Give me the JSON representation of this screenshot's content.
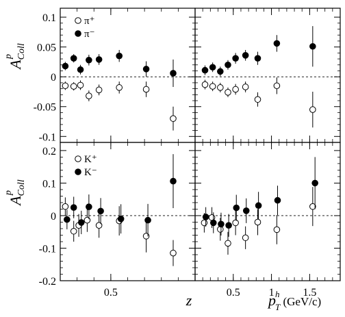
{
  "chart_data": [
    {
      "type": "scatter",
      "panel": "top-left",
      "ylabel": {
        "base": "A",
        "sup": "p",
        "sub": "Coll"
      },
      "xlabel": "z",
      "xlim": [
        0.2,
        1.0
      ],
      "ylim": [
        -0.11,
        0.115
      ],
      "yticks": [
        -0.1,
        -0.05,
        0,
        0.05,
        0.1
      ],
      "ytick_labels": [
        "-0.1",
        "-0.05",
        "0",
        "0.05",
        "0.1"
      ],
      "xticks": [
        0.5
      ],
      "xtick_labels": [
        "0.5"
      ],
      "legend": {
        "position": "top-left"
      },
      "series": [
        {
          "name": "π⁺",
          "marker": "open-circle",
          "points": [
            {
              "x": 0.23,
              "y": -0.015,
              "err": 0.007
            },
            {
              "x": 0.28,
              "y": -0.016,
              "err": 0.007
            },
            {
              "x": 0.32,
              "y": -0.014,
              "err": 0.008
            },
            {
              "x": 0.37,
              "y": -0.032,
              "err": 0.009
            },
            {
              "x": 0.43,
              "y": -0.022,
              "err": 0.009
            },
            {
              "x": 0.55,
              "y": -0.018,
              "err": 0.01
            },
            {
              "x": 0.71,
              "y": -0.021,
              "err": 0.013
            },
            {
              "x": 0.87,
              "y": -0.07,
              "err": 0.02
            }
          ]
        },
        {
          "name": "π⁻",
          "marker": "filled-circle",
          "points": [
            {
              "x": 0.23,
              "y": 0.018,
              "err": 0.007
            },
            {
              "x": 0.28,
              "y": 0.031,
              "err": 0.007
            },
            {
              "x": 0.32,
              "y": 0.012,
              "err": 0.008
            },
            {
              "x": 0.37,
              "y": 0.028,
              "err": 0.009
            },
            {
              "x": 0.43,
              "y": 0.029,
              "err": 0.009
            },
            {
              "x": 0.55,
              "y": 0.035,
              "err": 0.01
            },
            {
              "x": 0.71,
              "y": 0.013,
              "err": 0.013
            },
            {
              "x": 0.87,
              "y": 0.006,
              "err": 0.023
            }
          ]
        }
      ]
    },
    {
      "type": "scatter",
      "panel": "top-right",
      "xlim": [
        0.0,
        1.9
      ],
      "ylim": [
        -0.11,
        0.115
      ],
      "xticks": [
        0.5,
        1,
        1.5
      ],
      "xtick_labels": [
        "0.5",
        "1",
        "1.5"
      ],
      "series": [
        {
          "name": "π⁺",
          "marker": "open-circle",
          "points": [
            {
              "x": 0.13,
              "y": -0.013,
              "err": 0.008
            },
            {
              "x": 0.23,
              "y": -0.016,
              "err": 0.008
            },
            {
              "x": 0.33,
              "y": -0.018,
              "err": 0.008
            },
            {
              "x": 0.43,
              "y": -0.026,
              "err": 0.008
            },
            {
              "x": 0.53,
              "y": -0.021,
              "err": 0.009
            },
            {
              "x": 0.66,
              "y": -0.017,
              "err": 0.009
            },
            {
              "x": 0.82,
              "y": -0.038,
              "err": 0.012
            },
            {
              "x": 1.07,
              "y": -0.015,
              "err": 0.014
            },
            {
              "x": 1.54,
              "y": -0.055,
              "err": 0.03
            }
          ]
        },
        {
          "name": "π⁻",
          "marker": "filled-circle",
          "points": [
            {
              "x": 0.13,
              "y": 0.011,
              "err": 0.008
            },
            {
              "x": 0.23,
              "y": 0.016,
              "err": 0.008
            },
            {
              "x": 0.33,
              "y": 0.009,
              "err": 0.008
            },
            {
              "x": 0.43,
              "y": 0.02,
              "err": 0.008
            },
            {
              "x": 0.53,
              "y": 0.031,
              "err": 0.009
            },
            {
              "x": 0.66,
              "y": 0.036,
              "err": 0.009
            },
            {
              "x": 0.82,
              "y": 0.031,
              "err": 0.011
            },
            {
              "x": 1.07,
              "y": 0.056,
              "err": 0.014
            },
            {
              "x": 1.54,
              "y": 0.051,
              "err": 0.034
            }
          ]
        }
      ]
    },
    {
      "type": "scatter",
      "panel": "bottom-left",
      "ylabel": {
        "base": "A",
        "sup": "p",
        "sub": "Coll"
      },
      "xlabel": "z",
      "xlim": [
        0.2,
        1.0
      ],
      "ylim": [
        -0.2,
        0.225
      ],
      "yticks": [
        -0.2,
        -0.1,
        0,
        0.1,
        0.2
      ],
      "ytick_labels": [
        "-0.2",
        "-0.1",
        "0",
        "0.1",
        "0.2"
      ],
      "xticks": [
        0.5
      ],
      "xtick_labels": [
        "0.5"
      ],
      "legend": {
        "position": "top-left"
      },
      "series": [
        {
          "name": "K⁺",
          "marker": "open-circle",
          "points": [
            {
              "x": 0.23,
              "y": 0.028,
              "err": 0.028
            },
            {
              "x": 0.28,
              "y": -0.048,
              "err": 0.032
            },
            {
              "x": 0.31,
              "y": -0.03,
              "err": 0.035
            },
            {
              "x": 0.36,
              "y": -0.014,
              "err": 0.036
            },
            {
              "x": 0.43,
              "y": -0.03,
              "err": 0.038
            },
            {
              "x": 0.55,
              "y": -0.016,
              "err": 0.045
            },
            {
              "x": 0.71,
              "y": -0.063,
              "err": 0.05
            },
            {
              "x": 0.87,
              "y": -0.115,
              "err": 0.04
            }
          ]
        },
        {
          "name": "K⁻",
          "marker": "filled-circle",
          "points": [
            {
              "x": 0.24,
              "y": -0.012,
              "err": 0.03
            },
            {
              "x": 0.28,
              "y": 0.025,
              "err": 0.033
            },
            {
              "x": 0.325,
              "y": -0.021,
              "err": 0.036
            },
            {
              "x": 0.37,
              "y": 0.027,
              "err": 0.038
            },
            {
              "x": 0.44,
              "y": 0.014,
              "err": 0.04
            },
            {
              "x": 0.56,
              "y": -0.01,
              "err": 0.045
            },
            {
              "x": 0.72,
              "y": -0.014,
              "err": 0.05
            },
            {
              "x": 0.87,
              "y": 0.106,
              "err": 0.083
            }
          ]
        }
      ]
    },
    {
      "type": "scatter",
      "panel": "bottom-right",
      "xlabel": {
        "base": "p",
        "sup": "h",
        "sub": "T",
        "unit": " (GeV/c)"
      },
      "xlim": [
        0.0,
        1.9
      ],
      "ylim": [
        -0.2,
        0.225
      ],
      "xticks": [
        0.5,
        1,
        1.5
      ],
      "xtick_labels": [
        "0.5",
        "1",
        "1.5"
      ],
      "series": [
        {
          "name": "K⁺",
          "marker": "open-circle",
          "points": [
            {
              "x": 0.12,
              "y": -0.022,
              "err": 0.03
            },
            {
              "x": 0.22,
              "y": -0.006,
              "err": 0.032
            },
            {
              "x": 0.33,
              "y": -0.042,
              "err": 0.035
            },
            {
              "x": 0.43,
              "y": -0.085,
              "err": 0.035
            },
            {
              "x": 0.53,
              "y": -0.022,
              "err": 0.038
            },
            {
              "x": 0.66,
              "y": -0.068,
              "err": 0.035
            },
            {
              "x": 0.82,
              "y": -0.02,
              "err": 0.04
            },
            {
              "x": 1.07,
              "y": -0.043,
              "err": 0.045
            },
            {
              "x": 1.54,
              "y": 0.028,
              "err": 0.06
            }
          ]
        },
        {
          "name": "K⁻",
          "marker": "filled-circle",
          "points": [
            {
              "x": 0.14,
              "y": -0.004,
              "err": 0.03
            },
            {
              "x": 0.24,
              "y": -0.022,
              "err": 0.032
            },
            {
              "x": 0.34,
              "y": -0.026,
              "err": 0.035
            },
            {
              "x": 0.44,
              "y": -0.03,
              "err": 0.035
            },
            {
              "x": 0.54,
              "y": 0.024,
              "err": 0.04
            },
            {
              "x": 0.67,
              "y": 0.015,
              "err": 0.038
            },
            {
              "x": 0.83,
              "y": 0.031,
              "err": 0.042
            },
            {
              "x": 1.08,
              "y": 0.047,
              "err": 0.045
            },
            {
              "x": 1.57,
              "y": 0.1,
              "err": 0.08
            }
          ]
        }
      ]
    }
  ]
}
